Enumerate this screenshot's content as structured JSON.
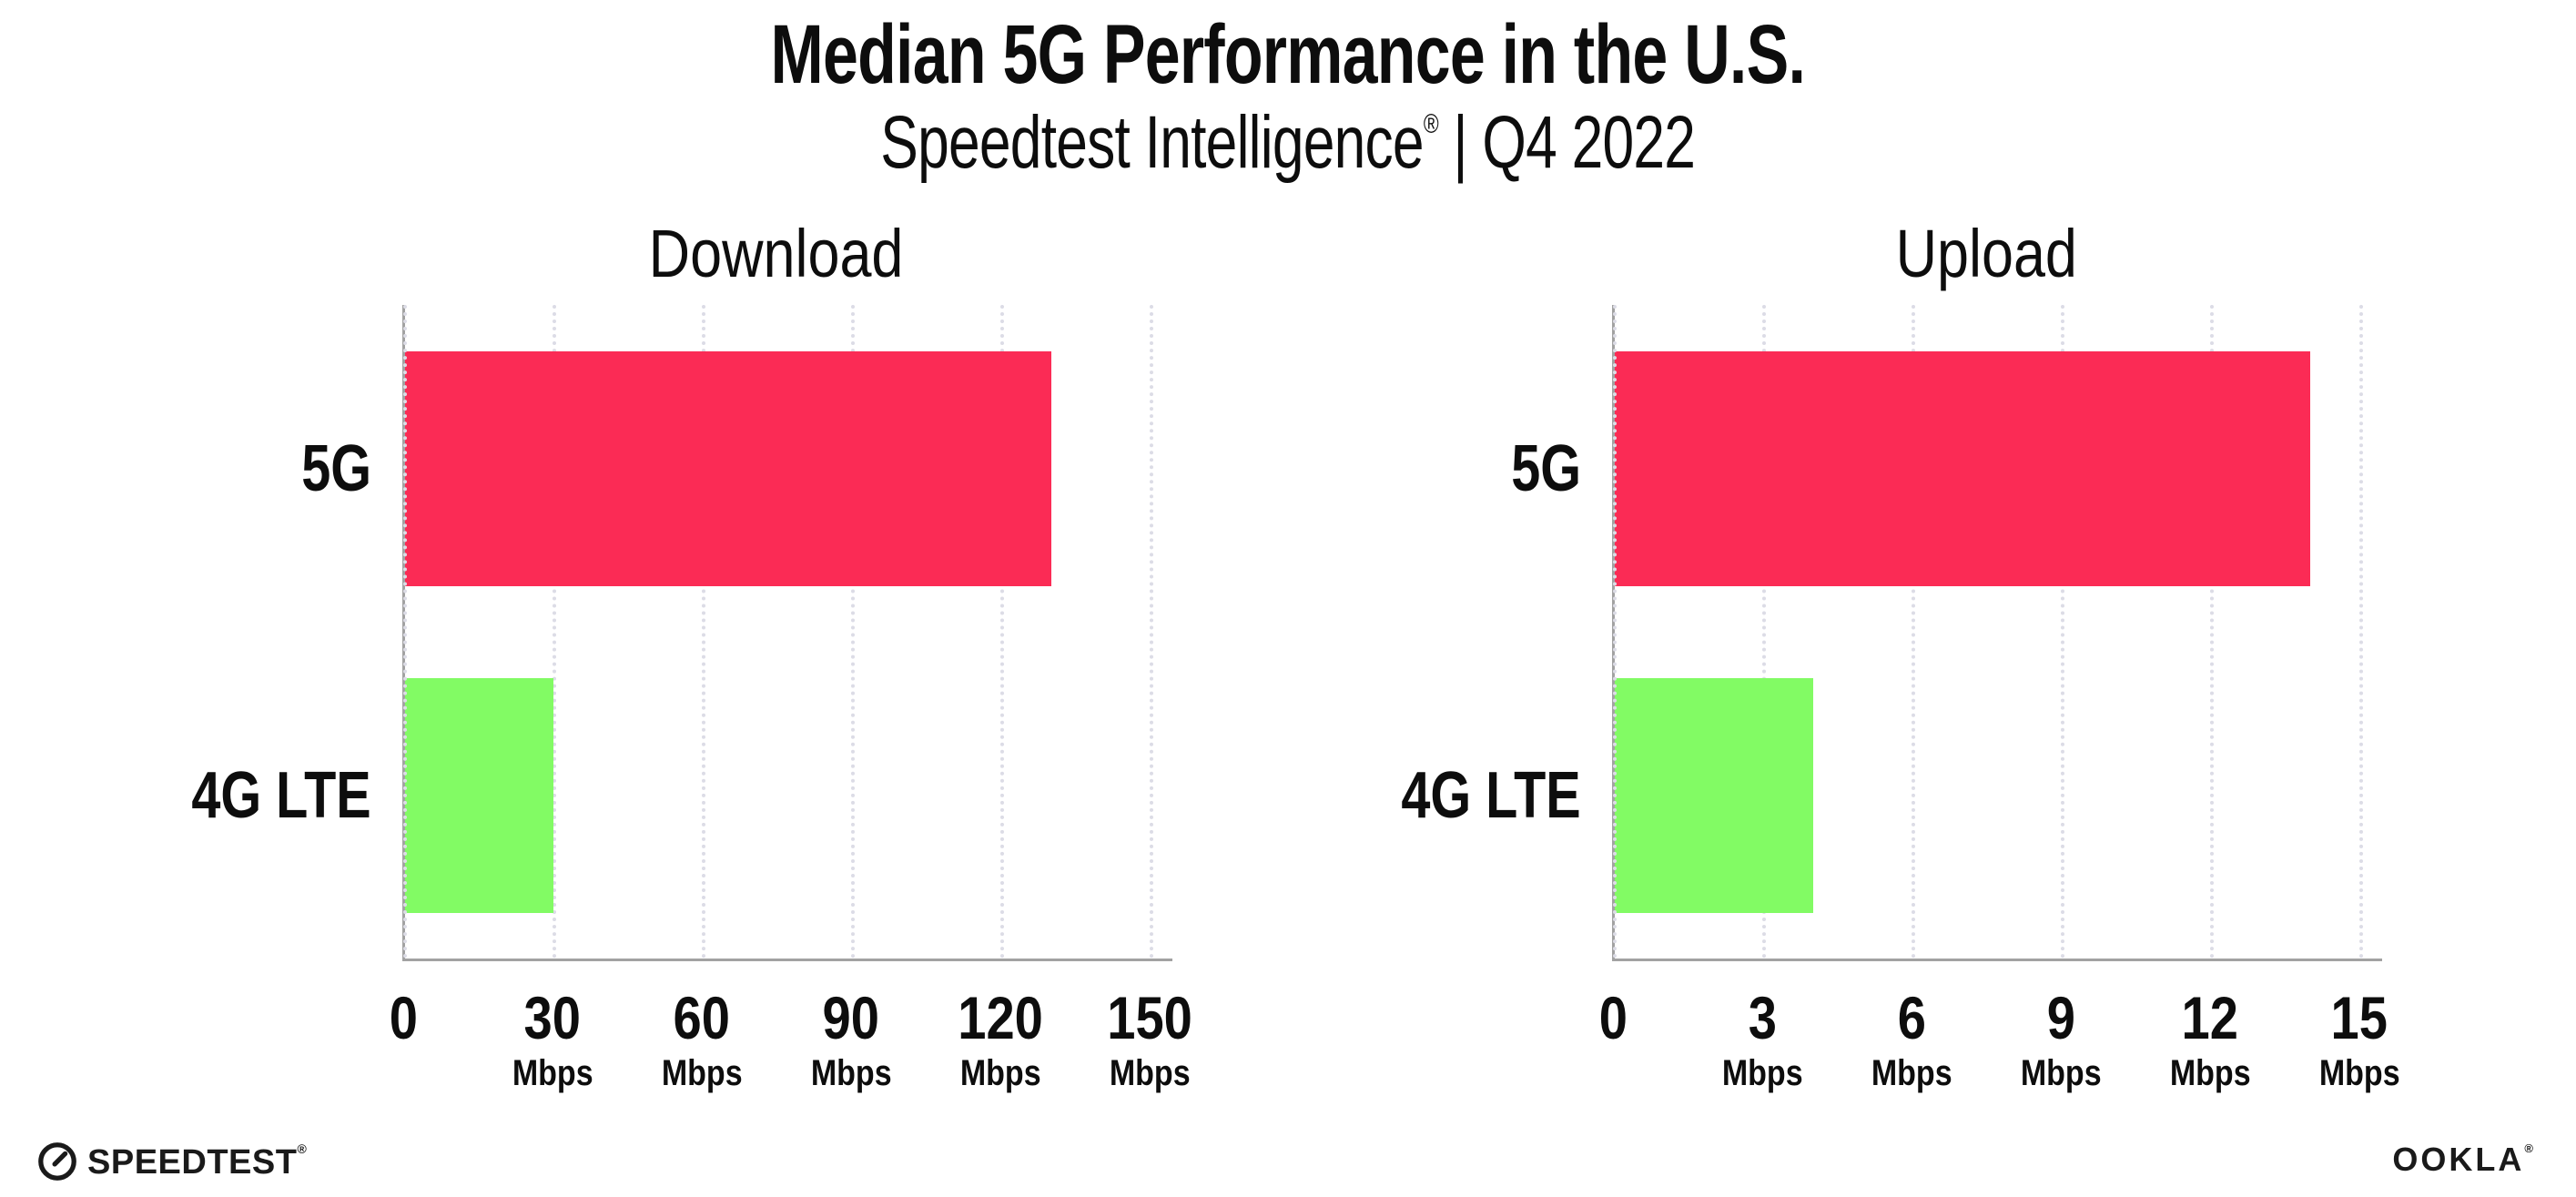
{
  "header": {
    "title": "Median 5G Performance in the U.S.",
    "subtitle_brand": "Speedtest Intelligence",
    "subtitle_mark": "®",
    "subtitle_rest": " | Q4 2022"
  },
  "chart_data": [
    {
      "type": "bar",
      "orientation": "horizontal",
      "title": "Download",
      "categories": [
        "5G",
        "4G LTE"
      ],
      "values": [
        130,
        30
      ],
      "unit": "Mbps",
      "xlim": [
        0,
        150
      ],
      "xticks": [
        0,
        30,
        60,
        90,
        120,
        150
      ],
      "bar_colors": [
        "#fb2b55",
        "#82fb64"
      ],
      "grid": "dotted-vertical",
      "legend": "none"
    },
    {
      "type": "bar",
      "orientation": "horizontal",
      "title": "Upload",
      "categories": [
        "5G",
        "4G LTE"
      ],
      "values": [
        14,
        4
      ],
      "unit": "Mbps",
      "xlim": [
        0,
        15
      ],
      "xticks": [
        0,
        3,
        6,
        9,
        12,
        15
      ],
      "bar_colors": [
        "#fb2b55",
        "#82fb64"
      ],
      "grid": "dotted-vertical",
      "legend": "none"
    }
  ],
  "colors": {
    "bar_5g": "#fb2b55",
    "bar_4g_lte": "#82fb64",
    "spine": "#a2a2a2",
    "gridline": "#dcdce6",
    "text": "#0d0d0d"
  },
  "footer": {
    "speedtest_label": "SPEEDTEST",
    "speedtest_mark": "®",
    "ookla_label": "OOKLA",
    "ookla_mark": "®"
  }
}
